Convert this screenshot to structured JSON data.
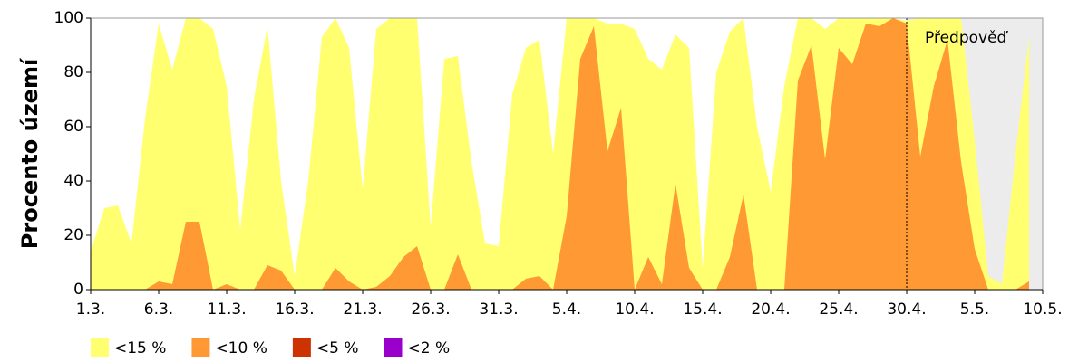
{
  "chart_data": {
    "type": "area",
    "y_label": "Procento území",
    "categories": [
      "1.3.",
      null,
      null,
      null,
      null,
      "6.3.",
      null,
      null,
      null,
      null,
      "11.3.",
      null,
      null,
      null,
      null,
      "16.3.",
      null,
      null,
      null,
      null,
      "21.3.",
      null,
      null,
      null,
      null,
      "26.3.",
      null,
      null,
      null,
      null,
      "31.3.",
      null,
      null,
      null,
      null,
      "5.4.",
      null,
      null,
      null,
      null,
      "10.4.",
      null,
      null,
      null,
      null,
      "15.4.",
      null,
      null,
      null,
      null,
      "20.4.",
      null,
      null,
      null,
      null,
      "25.4.",
      null,
      null,
      null,
      null,
      "30.4.",
      null,
      null,
      null,
      null,
      "5.5.",
      null,
      null,
      null,
      null,
      "10.5."
    ],
    "series": [
      {
        "name": "<15 %",
        "color": "#ffff70",
        "values": [
          14,
          30,
          31,
          17,
          63,
          98,
          81,
          100,
          100,
          96,
          75,
          22,
          70,
          97,
          40,
          5,
          40,
          93,
          100,
          89,
          37,
          96,
          100,
          100,
          100,
          23,
          85,
          86,
          47,
          17,
          16,
          72,
          89,
          92,
          50,
          100,
          100,
          100,
          98,
          98,
          96,
          85,
          81,
          94,
          89,
          8,
          80,
          95,
          100,
          60,
          36,
          75,
          100,
          100,
          96,
          100,
          100,
          100,
          100,
          100,
          99,
          100,
          100,
          100,
          100,
          55,
          5,
          2,
          50,
          93,
          null
        ]
      },
      {
        "name": "<10 %",
        "color": "#ff9933",
        "values": [
          0,
          0,
          0,
          0,
          0,
          3,
          2,
          25,
          25,
          0,
          2,
          0,
          0,
          9,
          7,
          0,
          0,
          0,
          8,
          3,
          0,
          1,
          5,
          12,
          16,
          0,
          0,
          13,
          0,
          0,
          0,
          0,
          4,
          5,
          0,
          27,
          85,
          97,
          51,
          67,
          0,
          12,
          2,
          39,
          8,
          0,
          0,
          12,
          35,
          0,
          0,
          0,
          77,
          90,
          48,
          89,
          83,
          98,
          97,
          100,
          98,
          49,
          75,
          92,
          47,
          15,
          0,
          0,
          0,
          3,
          null
        ]
      },
      {
        "name": "<5 %",
        "color": "#cc3300",
        "values": [
          0,
          0,
          0,
          0,
          0,
          0,
          0,
          0,
          0,
          0,
          0,
          0,
          0,
          0,
          0,
          0,
          0,
          0,
          0,
          0,
          0,
          0,
          0,
          0,
          0,
          0,
          0,
          0,
          0,
          0,
          0,
          0,
          0,
          0,
          0,
          0,
          0,
          0,
          0,
          0,
          0,
          0,
          0,
          0,
          0,
          0,
          0,
          0,
          0,
          0,
          0,
          0,
          0,
          0,
          0,
          0,
          0,
          0,
          0,
          0,
          0,
          0,
          0,
          0,
          0,
          0,
          0,
          0,
          0,
          0,
          null
        ]
      },
      {
        "name": "<2 %",
        "color": "#9900cc",
        "values": [
          0,
          0,
          0,
          0,
          0,
          0,
          0,
          0,
          0,
          0,
          0,
          0,
          0,
          0,
          0,
          0,
          0,
          0,
          0,
          0,
          0,
          0,
          0,
          0,
          0,
          0,
          0,
          0,
          0,
          0,
          0,
          0,
          0,
          0,
          0,
          0,
          0,
          0,
          0,
          0,
          0,
          0,
          0,
          0,
          0,
          0,
          0,
          0,
          0,
          0,
          0,
          0,
          0,
          0,
          0,
          0,
          0,
          0,
          0,
          0,
          0,
          0,
          0,
          0,
          0,
          0,
          0,
          0,
          0,
          0,
          null
        ]
      }
    ],
    "ylim": [
      0,
      100
    ],
    "yticks": [
      0,
      20,
      40,
      60,
      80,
      100
    ],
    "forecast_start": "30.4.",
    "forecast_label": "Předpověď",
    "forecast_color": "#ececec"
  }
}
